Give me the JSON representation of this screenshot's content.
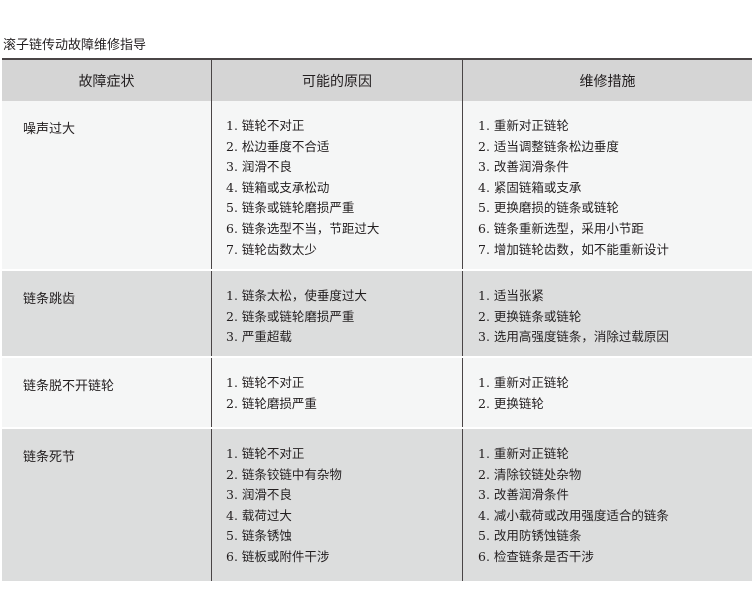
{
  "title": "滚子链传动故障维修指导",
  "headers": [
    "故障症状",
    "可能的原因",
    "维修措施"
  ],
  "rows": [
    {
      "symptom": "噪声过大",
      "causes": [
        "1. 链轮不对正",
        "2. 松边垂度不合适",
        "3. 润滑不良",
        "4. 链箱或支承松动",
        "5. 链条或链轮磨损严重",
        "6. 链条选型不当，节距过大",
        "7. 链轮齿数太少"
      ],
      "fixes": [
        "1. 重新对正链轮",
        "2. 适当调整链条松边垂度",
        "3. 改善润滑条件",
        "4. 紧固链箱或支承",
        "5. 更换磨损的链条或链轮",
        "6. 链条重新选型，采用小节距",
        "7. 增加链轮齿数，如不能重新设计"
      ]
    },
    {
      "symptom": "链条跳齿",
      "causes": [
        "1. 链条太松，使垂度过大",
        "2. 链条或链轮磨损严重",
        "3. 严重超载"
      ],
      "fixes": [
        "1. 适当张紧",
        "2. 更换链条或链轮",
        "3. 选用高强度链条，消除过载原因"
      ]
    },
    {
      "symptom": "链条脱不开链轮",
      "causes": [
        "1. 链轮不对正",
        "2. 链轮磨损严重"
      ],
      "fixes": [
        "1. 重新对正链轮",
        "2. 更换链轮"
      ]
    },
    {
      "symptom": "链条死节",
      "causes": [
        "1. 链轮不对正",
        "2. 链条铰链中有杂物",
        "3. 润滑不良",
        "4. 载荷过大",
        "5. 链条锈蚀",
        "6. 链板或附件干涉"
      ],
      "fixes": [
        "1. 重新对正链轮",
        "2. 清除铰链处杂物",
        "3. 改善润滑条件",
        "4. 减小载荷或改用强度适合的链条",
        "5. 改用防锈蚀链条",
        "6. 检查链条是否干涉"
      ]
    }
  ]
}
